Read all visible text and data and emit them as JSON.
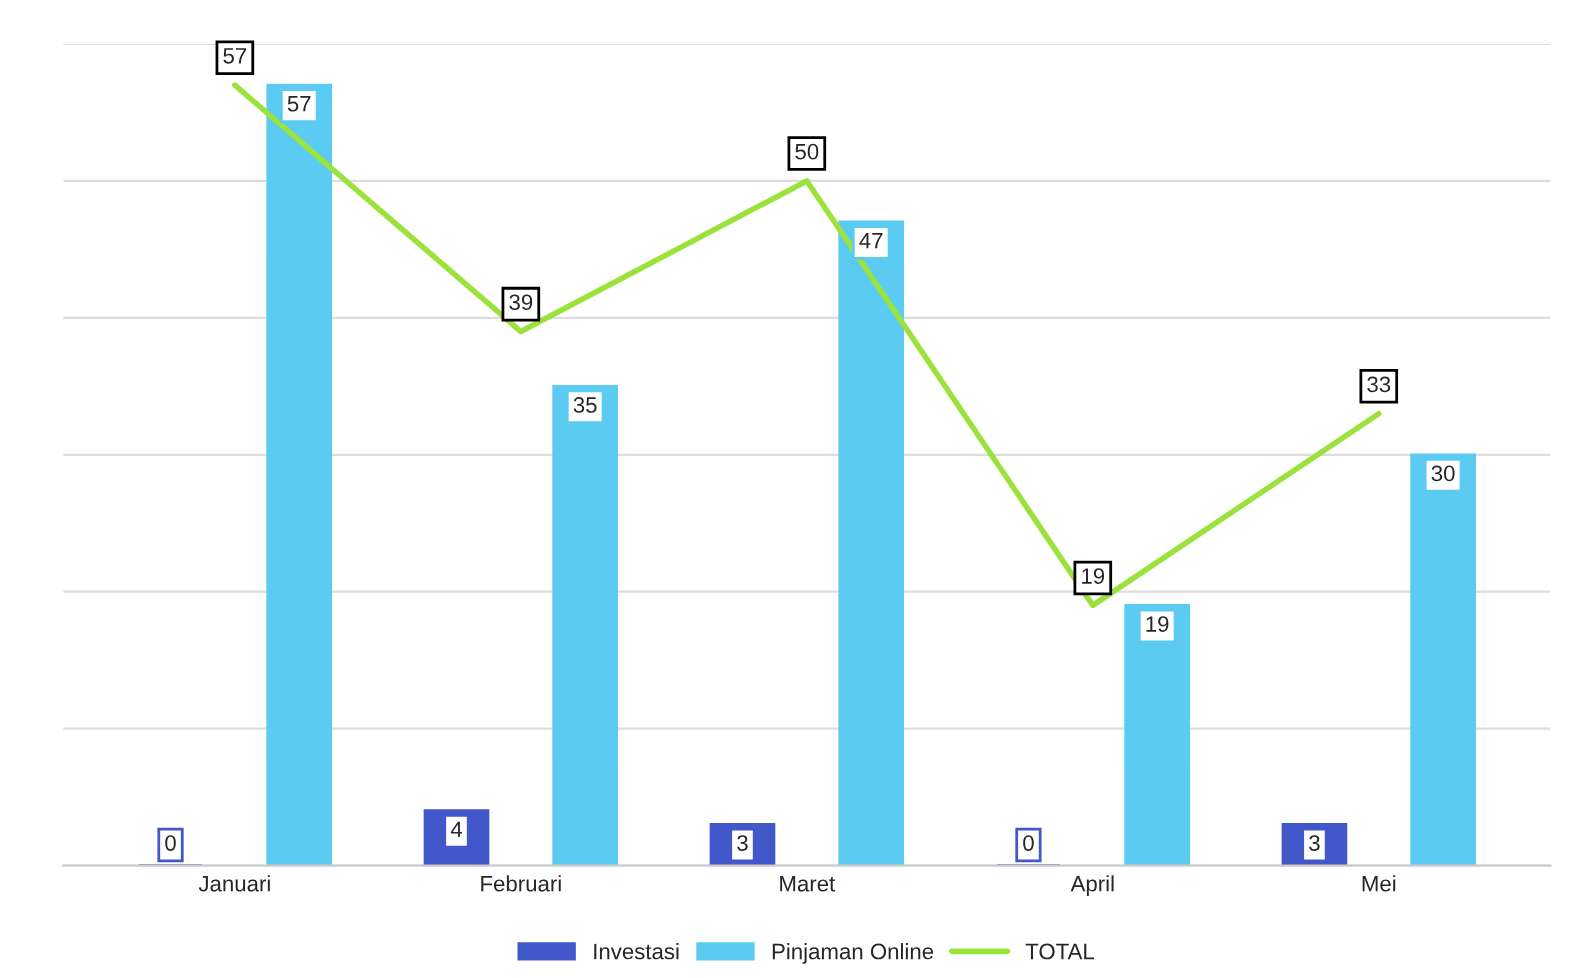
{
  "chart_data": {
    "type": "bar",
    "categories": [
      "Januari",
      "Februari",
      "Maret",
      "April",
      "Mei"
    ],
    "series": [
      {
        "name": "Investasi",
        "color": "#4257c9",
        "values": [
          0,
          4,
          3,
          0,
          3
        ]
      },
      {
        "name": "Pinjaman Online",
        "color": "#5ccbf2",
        "values": [
          57,
          35,
          47,
          19,
          30
        ]
      },
      {
        "name": "TOTAL",
        "type": "line",
        "color": "#9be33c",
        "values": [
          57,
          39,
          50,
          19,
          33
        ]
      }
    ],
    "ylim": [
      0,
      60
    ],
    "yticks": [
      {
        "value": 0,
        "label": null
      },
      {
        "value": 10,
        "label": null
      },
      {
        "value": 20,
        "label": null
      },
      {
        "value": 30,
        "label": null
      },
      {
        "value": 40,
        "label": null
      },
      {
        "value": 50,
        "label": null
      },
      {
        "value": 60,
        "label": null
      }
    ],
    "tick_labels": "x",
    "grid": "y",
    "legend": "bottom",
    "data_labels": true
  }
}
